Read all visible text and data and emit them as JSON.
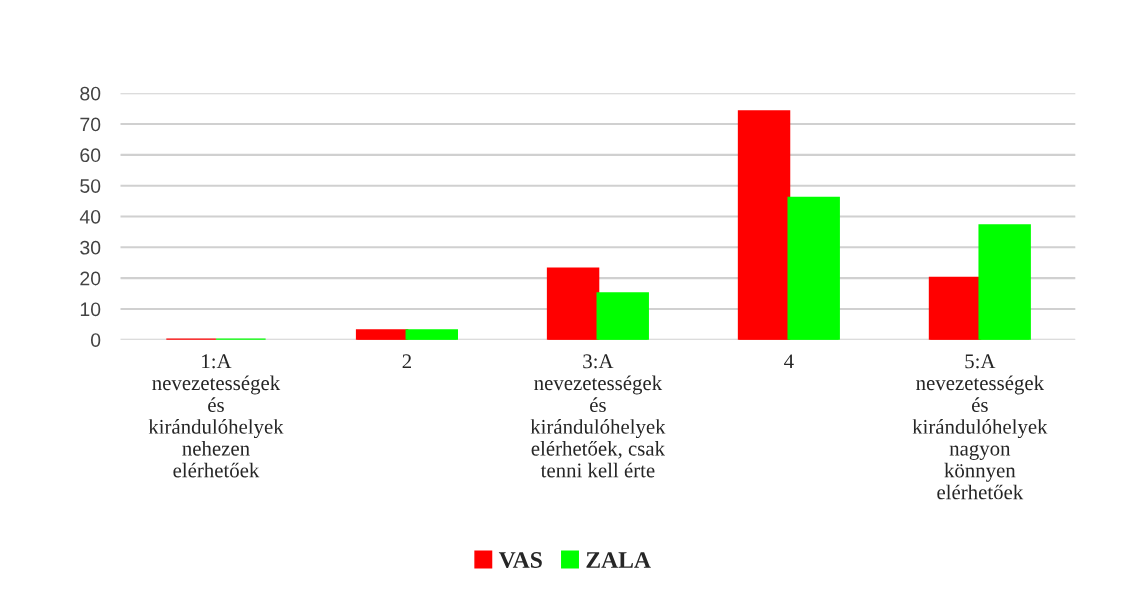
{
  "chart_data": {
    "type": "bar",
    "categories": [
      "1:A\nnevezetességek\nés\nkirándulóhelyek\nnehezen\nelérhetőek",
      "2",
      "3:A\nnevezetességek\nés\nkirándulóhelyek\nelérhetőek, csak\ntenni kell érte",
      "4",
      "5:A\nnevezetességek\nés\nkirándulóhelyek\nnagyon\nkönnyen\nelérhetőek"
    ],
    "series": [
      {
        "name": "VAS",
        "color": "#ff0000",
        "values": [
          0,
          3,
          23,
          74,
          20
        ]
      },
      {
        "name": "ZALA",
        "color": "#00ff00",
        "values": [
          0,
          3,
          15,
          46,
          37
        ]
      }
    ],
    "ylim": [
      0,
      80
    ],
    "yticks": [
      0,
      10,
      20,
      30,
      40,
      50,
      60,
      70,
      80
    ],
    "grid": "y",
    "legend": "bottom"
  }
}
